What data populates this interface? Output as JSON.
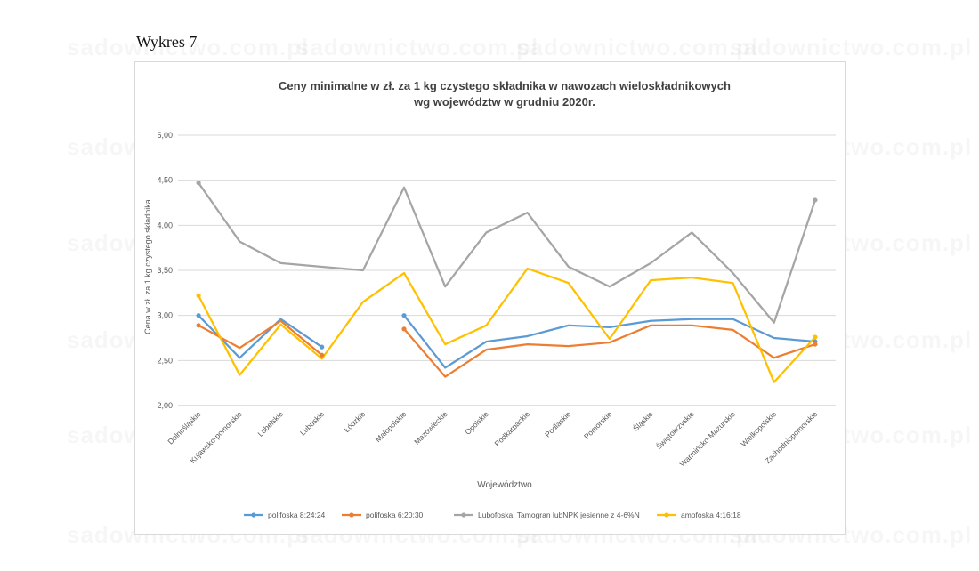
{
  "heading": "Wykres 7",
  "watermark_text": "sadownictwo.com.pl",
  "chart_data": {
    "type": "line",
    "title": "Ceny minimalne w zł. za 1 kg czystego składnika w nawozach wieloskładnikowych",
    "subtitle": "wg województw w grudniu 2020r.",
    "xlabel": "Województwo",
    "ylabel": "Cena w zł. za 1 kg czystego składnika",
    "ylim": [
      2.0,
      5.0
    ],
    "yticks": [
      "2,00",
      "2,50",
      "3,00",
      "3,50",
      "4,00",
      "4,50",
      "5,00"
    ],
    "grid": true,
    "legend_position": "bottom",
    "categories": [
      "Dolnośląskie",
      "Kujawsko-pomorskie",
      "Lubelskie",
      "Lubuskie",
      "Łódzkie",
      "Małopolskie",
      "Mazowieckie",
      "Opolskie",
      "Podkarpackie",
      "Podlaskie",
      "Pomorskie",
      "Śląskie",
      "Świętokrzyskie",
      "Warmińsko-Mazurskie",
      "Wielkopolskie",
      "Zachodniopomorskie"
    ],
    "series": [
      {
        "name": "polifoska 8:24:24",
        "color": "#5b9bd5",
        "values": [
          3.0,
          2.53,
          2.96,
          2.65,
          null,
          3.0,
          2.42,
          2.71,
          2.77,
          2.89,
          2.87,
          2.94,
          2.96,
          2.96,
          2.75,
          2.71
        ]
      },
      {
        "name": "polifoska 6:20:30",
        "color": "#ed7d31",
        "values": [
          2.89,
          2.64,
          2.94,
          2.56,
          null,
          2.85,
          2.32,
          2.62,
          2.68,
          2.66,
          2.7,
          2.89,
          2.89,
          2.84,
          2.53,
          2.68
        ]
      },
      {
        "name": "Lubofoska, Tamogran lubNPK jesienne z 4-6%N",
        "color": "#a5a5a5",
        "values": [
          4.47,
          3.82,
          3.58,
          3.54,
          3.5,
          4.42,
          3.32,
          3.92,
          4.14,
          3.54,
          3.32,
          3.58,
          3.92,
          3.47,
          2.92,
          4.28
        ]
      },
      {
        "name": "amofoska 4:16:18",
        "color": "#ffc000",
        "values": [
          3.22,
          2.34,
          2.9,
          2.52,
          3.15,
          3.47,
          2.68,
          2.89,
          3.52,
          3.36,
          2.74,
          3.39,
          3.42,
          3.36,
          2.26,
          2.76
        ]
      }
    ]
  }
}
